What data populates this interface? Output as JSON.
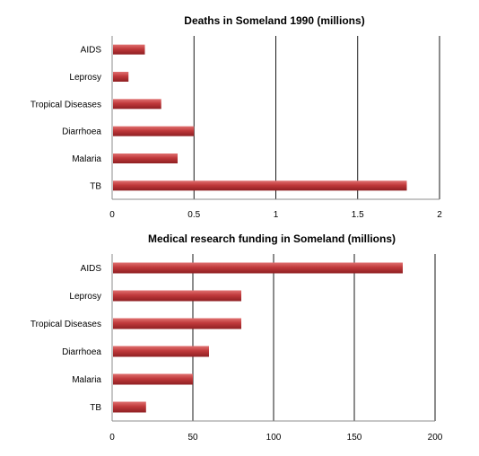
{
  "chart_data": [
    {
      "type": "bar",
      "orientation": "horizontal",
      "title": "Deaths in Someland 1990  (millions)",
      "categories": [
        "AIDS",
        "Leprosy",
        "Tropical Diseases",
        "Diarrhoea",
        "Malaria",
        "TB"
      ],
      "values": [
        0.2,
        0.1,
        0.3,
        0.5,
        0.4,
        1.8
      ],
      "xlim": [
        0,
        2
      ],
      "xticks": [
        0,
        0.5,
        1,
        1.5,
        2
      ],
      "xtick_labels": [
        "0",
        "0.5",
        "1",
        "1.5",
        "2"
      ],
      "grid": "vertical",
      "bar_color": "#c0393b"
    },
    {
      "type": "bar",
      "orientation": "horizontal",
      "title": "Medical research funding in Someland  (millions)",
      "categories": [
        "AIDS",
        "Leprosy",
        "Tropical Diseases",
        "Diarrhoea",
        "Malaria",
        "TB"
      ],
      "values": [
        180,
        80,
        80,
        60,
        50,
        21
      ],
      "xlim": [
        0,
        200
      ],
      "xticks": [
        0,
        50,
        100,
        150,
        200
      ],
      "xtick_labels": [
        "0",
        "50",
        "100",
        "150",
        "200"
      ],
      "grid": "vertical",
      "bar_color": "#c0393b"
    }
  ]
}
